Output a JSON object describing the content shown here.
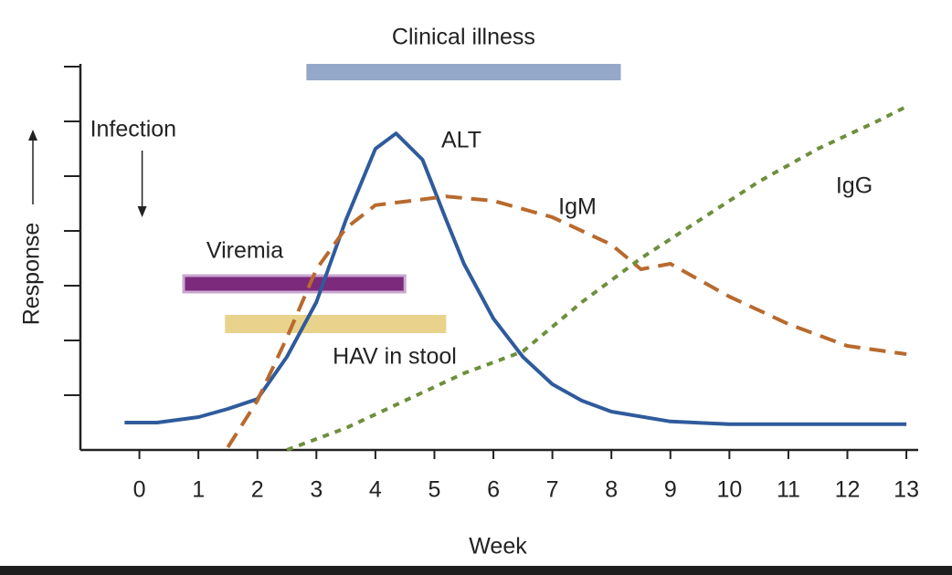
{
  "chart_data": {
    "type": "line",
    "x_label": "Week",
    "y_label": "Response",
    "xlim": [
      -1,
      13.2
    ],
    "xticks": [
      0,
      1,
      2,
      3,
      4,
      5,
      6,
      7,
      8,
      9,
      10,
      11,
      12,
      13
    ],
    "ylim": [
      0,
      7
    ],
    "yticks": [
      1,
      2,
      3,
      4,
      5,
      6,
      7
    ],
    "annotations": [
      {
        "text": "Infection",
        "x": 0
      }
    ],
    "bars": [
      {
        "label": "Clinical illness",
        "start": 2.83,
        "end": 8.16,
        "color": "#94a9c9"
      },
      {
        "label": "Viremia",
        "start": 0.75,
        "end": 4.5,
        "color": "#7b2a7c"
      },
      {
        "label": "HAV in stool",
        "start": 1.45,
        "end": 5.2,
        "color": "#e9d38c"
      }
    ],
    "series": [
      {
        "name": "ALT",
        "color": "#2f5b9c",
        "dash": "solid",
        "x": [
          -0.25,
          0.3,
          1,
          1.5,
          2,
          2.5,
          3,
          3.5,
          4,
          4.35,
          4.8,
          5.2,
          5.5,
          6,
          6.5,
          7,
          7.5,
          8,
          9,
          10,
          13
        ],
        "values": [
          0.5,
          0.5,
          0.6,
          0.75,
          0.93,
          1.7,
          2.7,
          4.2,
          5.5,
          5.78,
          5.3,
          4.2,
          3.4,
          2.4,
          1.7,
          1.2,
          0.9,
          0.7,
          0.52,
          0.47,
          0.47
        ]
      },
      {
        "name": "IgM",
        "color": "#b86a2e",
        "dash": "dashed",
        "x": [
          1.5,
          2,
          2.5,
          3,
          3.5,
          4,
          5.2,
          6,
          7,
          8,
          8.5,
          9,
          10,
          11,
          12,
          13
        ],
        "values": [
          0.05,
          0.9,
          2.05,
          3.3,
          4.05,
          4.47,
          4.63,
          4.55,
          4.25,
          3.75,
          3.3,
          3.4,
          2.8,
          2.3,
          1.9,
          1.75
        ]
      },
      {
        "name": "IgG",
        "color": "#6e8f3c",
        "dash": "dotted",
        "x": [
          2.5,
          3.5,
          4.5,
          5.5,
          6.5,
          7.5,
          8.5,
          9.5,
          10.5,
          11.5,
          12.5,
          13
        ],
        "values": [
          0,
          0.4,
          0.9,
          1.4,
          1.8,
          2.7,
          3.5,
          4.2,
          4.9,
          5.5,
          6,
          6.27
        ]
      }
    ]
  }
}
